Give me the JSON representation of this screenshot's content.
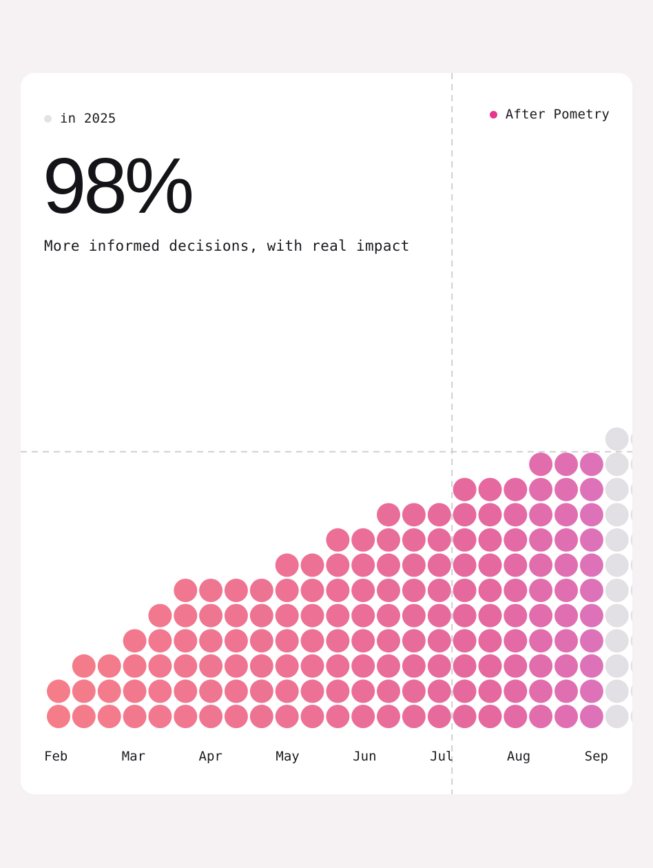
{
  "legend": {
    "baseline": {
      "label": "in 2025",
      "color": "#e4e2e6"
    },
    "highlight": {
      "label": "After Pometry",
      "color": "#e5368b"
    }
  },
  "headline": {
    "stat": "98%",
    "caption": "More informed decisions, with real impact"
  },
  "chart_data": {
    "type": "bar",
    "title": "",
    "xlabel": "",
    "ylabel": "",
    "x_tick_labels": [
      "Feb",
      "Mar",
      "Apr",
      "May",
      "Jun",
      "Jul",
      "Aug",
      "Sep"
    ],
    "columns": [
      2,
      3,
      3,
      4,
      5,
      6,
      6,
      6,
      6,
      7,
      7,
      8,
      8,
      9,
      9,
      9,
      10,
      10,
      10,
      11,
      11,
      11,
      12,
      12
    ],
    "baseline_columns": [
      12,
      17
    ],
    "crosshair": {
      "column": 15.5,
      "level": 10
    },
    "colors": {
      "start": "#f57d89",
      "end": "#e5689e",
      "after": "#dc74c0",
      "baseline": "#e2e0e4",
      "crosshair": "#cfcdd2"
    },
    "grid": false
  }
}
